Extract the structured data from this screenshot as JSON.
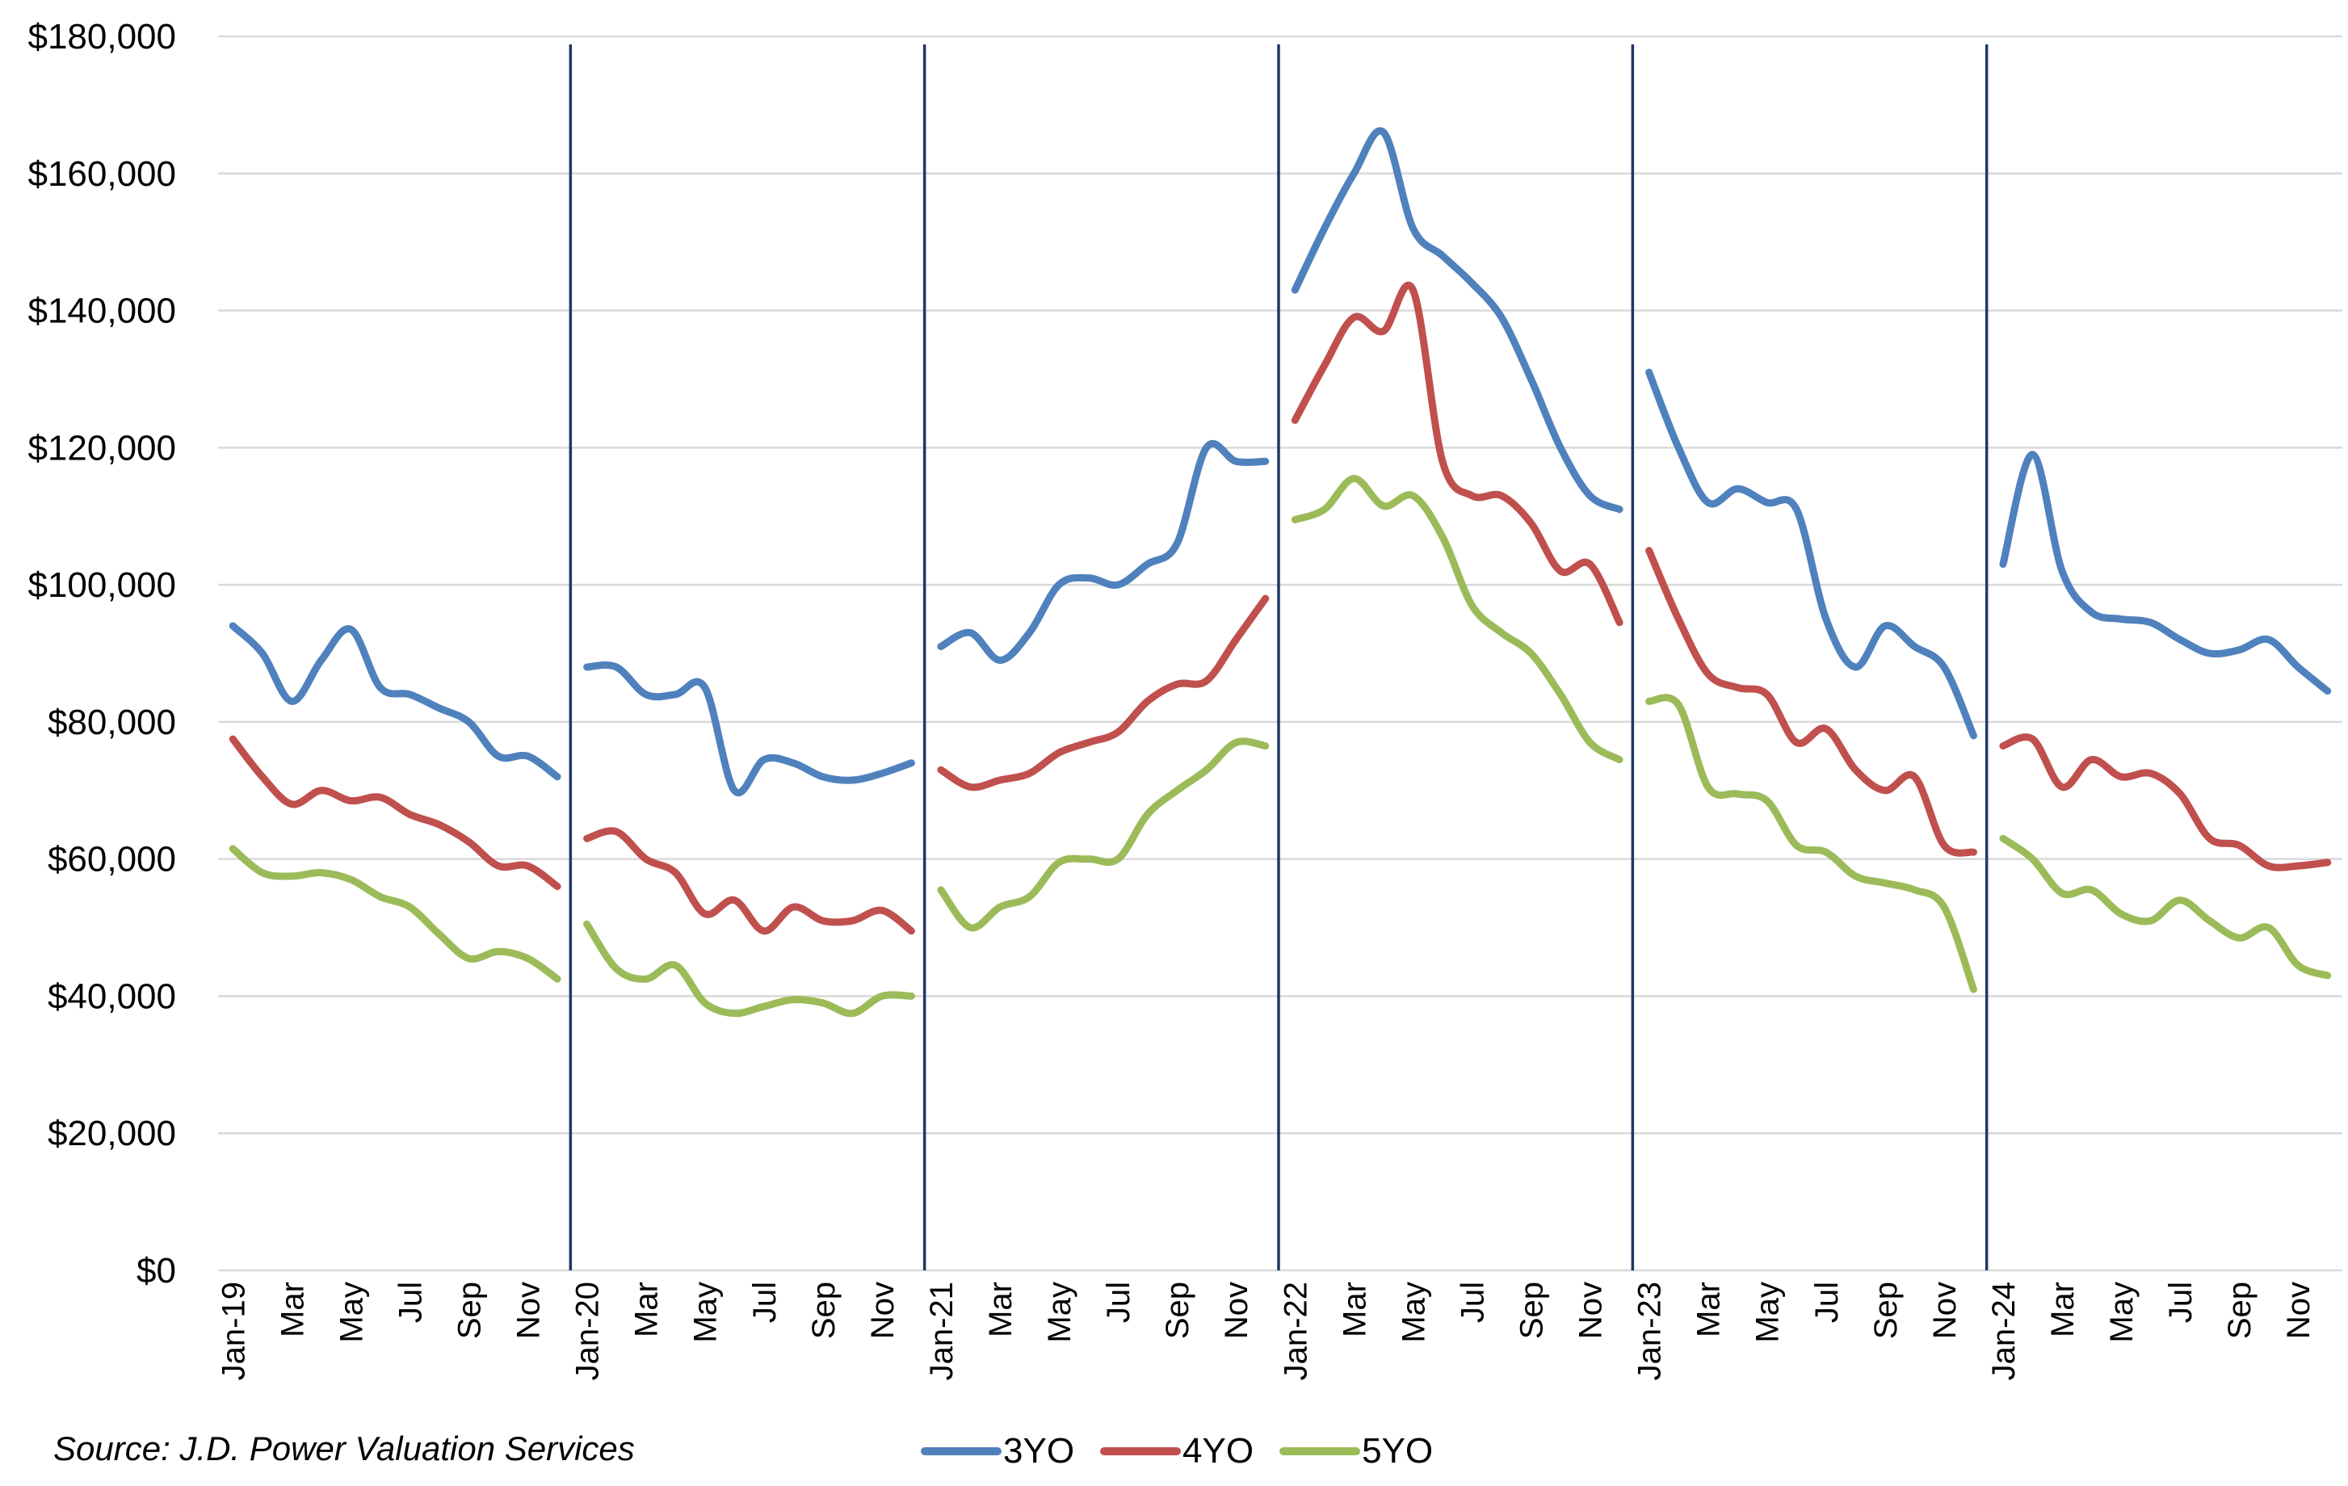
{
  "source": "Source: J.D. Power Valuation Services",
  "legend": [
    "3YO",
    "4YO",
    "5YO"
  ],
  "chart_data": {
    "type": "line",
    "title": "",
    "xlabel": "",
    "ylabel": "",
    "ylim": [
      0,
      180000
    ],
    "y_ticks": [
      "$0",
      "$20,000",
      "$40,000",
      "$60,000",
      "$80,000",
      "$100,000",
      "$120,000",
      "$140,000",
      "$160,000",
      "$180,000"
    ],
    "x_ticks": [
      "Jan-19",
      "Mar",
      "May",
      "Jul",
      "Sep",
      "Nov",
      "Jan-20",
      "Mar",
      "May",
      "Jul",
      "Sep",
      "Nov",
      "Jan-21",
      "Mar",
      "May",
      "Jul",
      "Sep",
      "Nov",
      "Jan-22",
      "Mar",
      "May",
      "Jul",
      "Sep",
      "Nov",
      "Jan-23",
      "Mar",
      "May",
      "Jul",
      "Sep",
      "Nov",
      "Jan-24",
      "Mar",
      "May",
      "Jul",
      "Sep",
      "Nov"
    ],
    "grid": true,
    "legend_position": "bottom",
    "year_dividers": true,
    "years": [
      "2019",
      "2020",
      "2021",
      "2022",
      "2023",
      "2024"
    ],
    "series": [
      {
        "name": "3YO",
        "color": "#4f81bd",
        "values": [
          [
            94000,
            90000,
            83000,
            89000,
            93500,
            85000,
            84000,
            82000,
            80000,
            75000,
            75000,
            72000
          ],
          [
            88000,
            88000,
            84000,
            84000,
            85000,
            70000,
            74500,
            74000,
            72000,
            71500,
            72500,
            74000
          ],
          [
            91000,
            93000,
            89000,
            93000,
            100000,
            101000,
            100000,
            103000,
            106000,
            120000,
            118000,
            118000
          ],
          [
            143000,
            152000,
            160000,
            166000,
            152000,
            148000,
            144000,
            139000,
            130000,
            120000,
            113000,
            111000
          ],
          [
            131000,
            120000,
            112000,
            114000,
            112000,
            111000,
            95000,
            88000,
            94000,
            91000,
            88000,
            78000
          ],
          [
            103000,
            119000,
            102000,
            96000,
            95000,
            94500,
            92000,
            90000,
            90500,
            92000,
            88000,
            84500
          ]
        ]
      },
      {
        "name": "4YO",
        "color": "#c0504d",
        "values": [
          [
            77500,
            72000,
            68000,
            70000,
            68500,
            69000,
            66500,
            65000,
            62500,
            59000,
            59000,
            56000
          ],
          [
            63000,
            64000,
            60000,
            58000,
            52000,
            54000,
            49500,
            53000,
            51000,
            51000,
            52500,
            49500
          ],
          [
            73000,
            70500,
            71500,
            72500,
            75500,
            77000,
            78500,
            83000,
            85500,
            86000,
            92000,
            98000
          ],
          [
            124000,
            132000,
            139000,
            137000,
            143000,
            118000,
            113000,
            113000,
            109000,
            102000,
            103000,
            94500
          ],
          [
            105000,
            95000,
            87000,
            85000,
            84000,
            77000,
            79000,
            73000,
            70000,
            72000,
            62000,
            61000
          ],
          [
            76500,
            77500,
            70500,
            74500,
            72000,
            72500,
            69500,
            63000,
            62000,
            59000,
            59000,
            59500
          ]
        ]
      },
      {
        "name": "5YO",
        "color": "#9bbb59",
        "values": [
          [
            61500,
            58000,
            57500,
            58000,
            57000,
            54500,
            53000,
            49000,
            45500,
            46500,
            45500,
            42500
          ],
          [
            50500,
            44000,
            42500,
            44500,
            39000,
            37500,
            38500,
            39500,
            39000,
            37500,
            40000,
            40000
          ],
          [
            55500,
            50000,
            53000,
            54500,
            59500,
            60000,
            60000,
            66500,
            70000,
            73000,
            77000,
            76500
          ],
          [
            109500,
            111000,
            115500,
            111500,
            113000,
            107000,
            97000,
            93000,
            90000,
            84000,
            77000,
            74500
          ],
          [
            83000,
            82500,
            70500,
            69500,
            68500,
            62000,
            61000,
            57500,
            56500,
            55500,
            53000,
            41000
          ],
          [
            63000,
            60000,
            55000,
            55500,
            52000,
            51000,
            54000,
            51000,
            48500,
            50000,
            44500,
            43000
          ]
        ]
      }
    ]
  }
}
